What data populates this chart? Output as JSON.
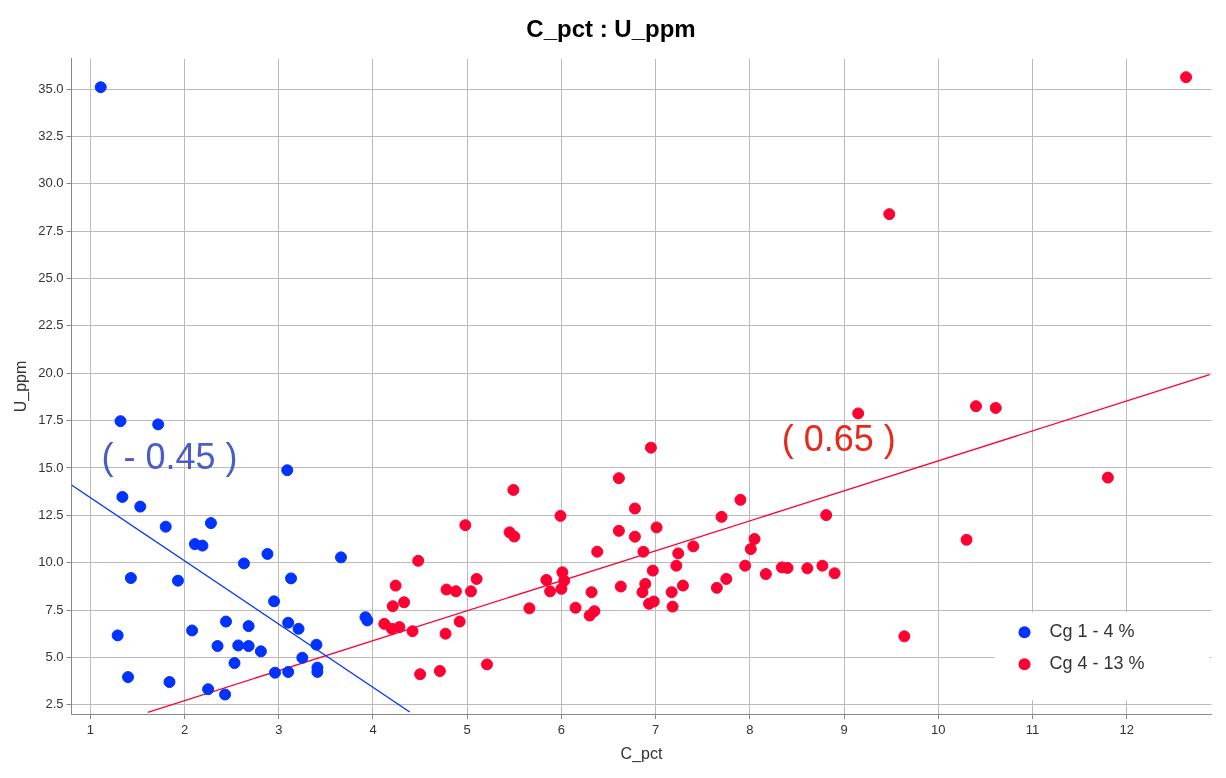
{
  "chart_data": {
    "type": "scatter",
    "title": "C_pct : U_ppm",
    "xlabel": "C_pct",
    "ylabel": "U_ppm",
    "xlim": [
      0.8,
      12.9
    ],
    "xticks": [
      1,
      2,
      3,
      4,
      5,
      6,
      7,
      8,
      9,
      10,
      11,
      12
    ],
    "ylim": [
      2.0,
      36.6
    ],
    "yticks": [
      2.5,
      {
        "value": 5,
        "label": "5.0"
      },
      7.5,
      {
        "value": 10,
        "label": "10.0"
      },
      12.5,
      {
        "value": 15,
        "label": "15.0"
      },
      17.5,
      {
        "value": 20,
        "label": "20.0"
      },
      22.5,
      {
        "value": 25,
        "label": "25.0"
      },
      27.5,
      {
        "value": 30,
        "label": "30.0"
      },
      32.5,
      {
        "value": 35,
        "label": "35.0"
      }
    ],
    "grid": true,
    "legend": "bottom right",
    "marker": "circle",
    "annotations": [
      "( - 0.45 )",
      "( 0.65 )"
    ],
    "series": [
      {
        "name": "Cg 1 - 4 %",
        "color": "#0033ff",
        "x": [
          1.11,
          1.32,
          1.72,
          3.09,
          1.34,
          1.53,
          1.8,
          2.28,
          2.11,
          2.19,
          2.63,
          2.88,
          3.66,
          1.43,
          1.93,
          3.13,
          2.95,
          3.92,
          3.94,
          1.29,
          2.08,
          2.44,
          2.68,
          3.1,
          3.21,
          2.35,
          2.57,
          2.68,
          2.81,
          3.4,
          2.53,
          3.25,
          3.41,
          3.41,
          2.96,
          3.1,
          1.4,
          1.84,
          2.25,
          2.43
        ],
        "values": [
          35.1,
          17.47,
          17.3,
          14.88,
          13.47,
          12.96,
          11.9,
          12.09,
          10.98,
          10.9,
          9.96,
          10.46,
          10.28,
          9.19,
          9.05,
          9.17,
          7.96,
          7.12,
          6.95,
          6.16,
          6.42,
          6.89,
          6.65,
          6.83,
          6.51,
          5.6,
          5.63,
          5.6,
          5.32,
          5.67,
          4.7,
          4.98,
          4.46,
          4.23,
          4.19,
          4.23,
          3.96,
          3.7,
          3.32,
          3.04
        ]
      },
      {
        "name": "Cg 4 - 13 %",
        "color": "#ff0033",
        "x": [
          6.95,
          6.61,
          6.78,
          5.49,
          4.98,
          5.99,
          5.45,
          5.5,
          6.61,
          6.78,
          7.01,
          6.38,
          6.87,
          7.24,
          7.4,
          7.22,
          6.97,
          4.48,
          4.24,
          4.21,
          4.33,
          4.12,
          4.2,
          4.28,
          4.42,
          4.5,
          4.71,
          5.21,
          4.77,
          4.92,
          4.78,
          4.88,
          5.04,
          5.1,
          5.66,
          5.84,
          5.88,
          6.01,
          6.03,
          6.0,
          6.32,
          6.15,
          6.3,
          6.35,
          6.63,
          6.89,
          6.86,
          6.93,
          6.98,
          7.18,
          7.17,
          7.29,
          9.15,
          10.4,
          10.61,
          11.8,
          7.7,
          7.9,
          8.81,
          8.05,
          8.01,
          7.95,
          8.17,
          8.34,
          8.4,
          8.61,
          8.77,
          8.9,
          7.75,
          7.65,
          10.3,
          9.64,
          9.48,
          12.63
        ],
        "values": [
          16.07,
          14.46,
          12.86,
          13.84,
          11.98,
          12.47,
          11.6,
          11.38,
          11.68,
          11.37,
          11.86,
          10.58,
          10.58,
          10.49,
          10.86,
          9.84,
          9.58,
          10.1,
          8.79,
          7.7,
          7.91,
          6.77,
          6.51,
          6.6,
          6.38,
          4.11,
          4.28,
          4.63,
          6.25,
          6.89,
          8.58,
          8.49,
          8.49,
          9.14,
          7.59,
          9.09,
          8.49,
          9.49,
          9.05,
          8.62,
          8.44,
          7.62,
          7.21,
          7.44,
          8.74,
          8.88,
          8.44,
          7.83,
          7.95,
          7.68,
          8.44,
          8.79,
          17.88,
          18.26,
          18.17,
          14.49,
          12.42,
          13.32,
          12.51,
          11.25,
          10.72,
          9.84,
          9.4,
          9.75,
          9.72,
          9.7,
          9.84,
          9.44,
          9.14,
          8.67,
          11.21,
          6.11,
          28.4,
          35.63
        ]
      },
      {
        "type": "line",
        "marker": "none",
        "color": "#0033ff",
        "x": [
          0.8,
          4.39
        ],
        "values": [
          14.1,
          2.12
        ]
      },
      {
        "type": "line",
        "marker": "none",
        "color": "#ff0033",
        "x": [
          1.61,
          12.88
        ],
        "values": [
          2.1,
          19.93
        ]
      }
    ]
  }
}
